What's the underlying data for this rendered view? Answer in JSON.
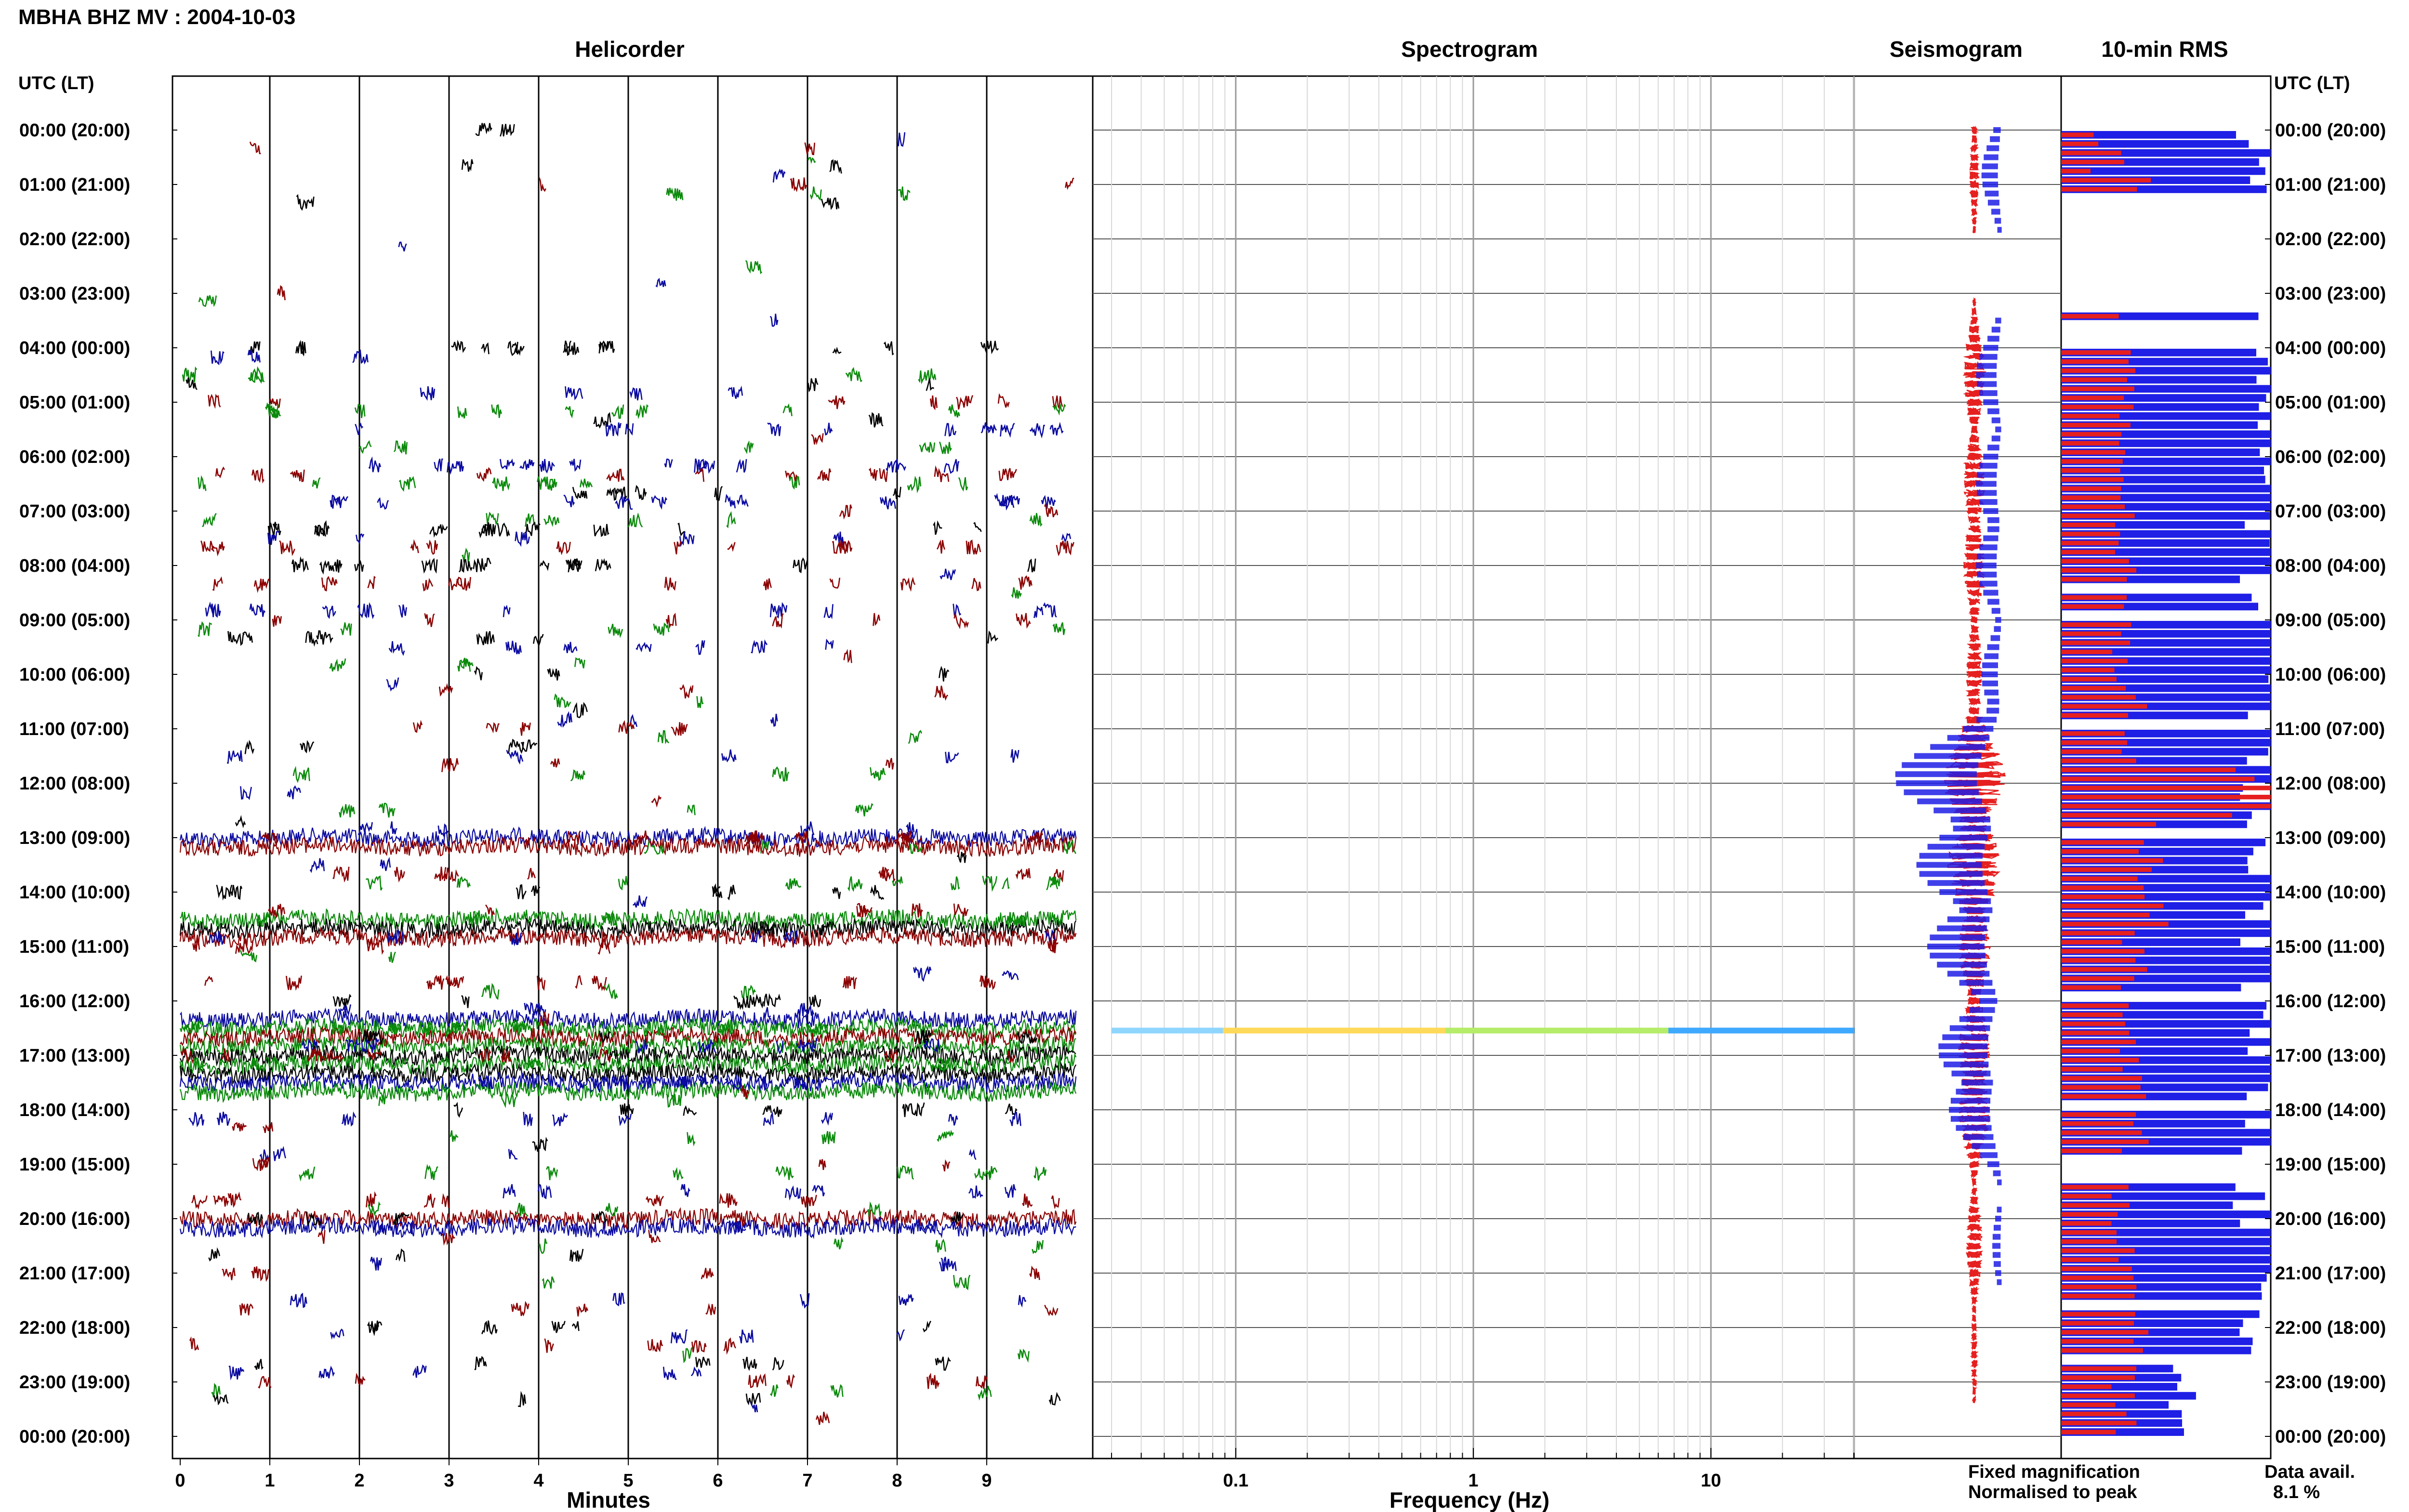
{
  "title": "MBHA BHZ MV : 2004-10-03",
  "panels": {
    "helicorder": "Helicorder",
    "spectrogram": "Spectrogram",
    "seismogram": "Seismogram",
    "rms": "10-min RMS"
  },
  "time_axis_label": "UTC (LT)",
  "time_labels": [
    "00:00 (20:00)",
    "01:00 (21:00)",
    "02:00 (22:00)",
    "03:00 (23:00)",
    "04:00 (00:00)",
    "05:00 (01:00)",
    "06:00 (02:00)",
    "07:00 (03:00)",
    "08:00 (04:00)",
    "09:00 (05:00)",
    "10:00 (06:00)",
    "11:00 (07:00)",
    "12:00 (08:00)",
    "13:00 (09:00)",
    "14:00 (10:00)",
    "15:00 (11:00)",
    "16:00 (12:00)",
    "17:00 (13:00)",
    "18:00 (14:00)",
    "19:00 (15:00)",
    "20:00 (16:00)",
    "21:00 (17:00)",
    "22:00 (18:00)",
    "23:00 (19:00)",
    "00:00 (20:00)"
  ],
  "minutes_axis": {
    "label": "Minutes",
    "ticks": [
      "0",
      "1",
      "2",
      "3",
      "4",
      "5",
      "6",
      "7",
      "8",
      "9"
    ]
  },
  "frequency_axis": {
    "label": "Frequency (Hz)",
    "ticks": [
      "0.1",
      "1",
      "10"
    ],
    "scale": "log",
    "range": [
      0.025,
      40
    ]
  },
  "legend": {
    "fixed": "Fixed magnification",
    "normalised": "Normalised to peak",
    "fixed_color": "#1f1fe6",
    "normalised_color": "#e61f1f"
  },
  "data_avail_label": "Data avail.",
  "data_avail_value": "8.1 %",
  "trace_colors": [
    "#000000",
    "#0a0aa0",
    "#8b0000",
    "#0a8a0a"
  ],
  "chart_data": {
    "type": "heatmap",
    "x": "minutes",
    "xlim": [
      0,
      10
    ],
    "ylim": [
      "00:00 UTC",
      "24:00 UTC"
    ],
    "rows_per_hour": 6,
    "helicorder_continuous_rows": [
      {
        "row": 78,
        "color": "#0a0aa0"
      },
      {
        "row": 79,
        "color": "#8b0000"
      },
      {
        "row": 87,
        "color": "#0a8a0a"
      },
      {
        "row": 88,
        "color": "#000000"
      },
      {
        "row": 89,
        "color": "#8b0000"
      },
      {
        "row": 98,
        "color": "#0a0aa0"
      },
      {
        "row": 99,
        "color": "#0a8a0a"
      },
      {
        "row": 100,
        "color": "#8b0000"
      },
      {
        "row": 101,
        "color": "#0a8a0a"
      },
      {
        "row": 102,
        "color": "#000000"
      },
      {
        "row": 103,
        "color": "#0a8a0a"
      },
      {
        "row": 104,
        "color": "#000000"
      },
      {
        "row": 105,
        "color": "#0a0aa0"
      },
      {
        "row": 106,
        "color": "#0a8a0a"
      },
      {
        "row": 120,
        "color": "#8b0000"
      },
      {
        "row": 121,
        "color": "#0a0aa0"
      }
    ],
    "spectrogram_events": [
      {
        "hour": 16.5,
        "fmin": 0.03,
        "fmax": 40
      }
    ],
    "seismogram_events": [
      {
        "hour": 0.2,
        "norm": 0.05,
        "fixed": 0.0
      },
      {
        "hour": 0.8,
        "norm": 0.08,
        "fixed": 0.2
      },
      {
        "hour": 4.5,
        "norm": 0.2,
        "fixed": 0.25
      },
      {
        "hour": 6.5,
        "norm": 0.2,
        "fixed": 0.25
      },
      {
        "hour": 8.0,
        "norm": 0.2,
        "fixed": 0.25
      },
      {
        "hour": 10.0,
        "norm": 0.15,
        "fixed": 0.2
      },
      {
        "hour": 11.9,
        "norm": 0.6,
        "fixed": 1.0
      },
      {
        "hour": 13.5,
        "norm": 0.5,
        "fixed": 0.8
      },
      {
        "hour": 15.0,
        "norm": 0.3,
        "fixed": 0.7
      },
      {
        "hour": 16.9,
        "norm": 0.3,
        "fixed": 0.6
      },
      {
        "hour": 18.0,
        "norm": 0.3,
        "fixed": 0.5
      },
      {
        "hour": 20.5,
        "norm": 0.15,
        "fixed": 0.1
      },
      {
        "hour": 22.5,
        "norm": 0.05,
        "fixed": 0.0
      }
    ],
    "rms_bars": [
      {
        "hour": 0.17,
        "blue": 0.8,
        "red": 0.17
      },
      {
        "hour": 0.33,
        "blue": 1.0,
        "red": 0.33
      },
      {
        "hour": 0.67,
        "blue": 1.0,
        "red": 0.13
      },
      {
        "hour": 0.83,
        "blue": 1.0,
        "red": 0.38
      },
      {
        "hour": 1.0,
        "blue": 1.0,
        "red": 0.4
      },
      {
        "hour": 1.17,
        "blue": 0.0,
        "red": 0.0
      },
      {
        "hour": 3.33,
        "blue": 0.93,
        "red": 0.26
      },
      {
        "hour": 4.0,
        "blue": 1.0,
        "red": 0.3
      },
      {
        "hour": 9.0,
        "blue": 1.0,
        "red": 0.3
      },
      {
        "hour": 11.2,
        "blue": 1.0,
        "red": 0.35
      },
      {
        "hour": 12.0,
        "blue": 1.0,
        "red": 1.0
      },
      {
        "hour": 13.0,
        "blue": 1.0,
        "red": 0.45
      },
      {
        "hour": 16.0,
        "blue": 1.0,
        "red": 0.35
      },
      {
        "hour": 18.0,
        "blue": 1.0,
        "red": 0.35
      },
      {
        "hour": 19.8,
        "blue": 0.95,
        "red": 0.3
      },
      {
        "hour": 22.0,
        "blue": 1.0,
        "red": 0.35
      },
      {
        "hour": 23.0,
        "blue": 0.6,
        "red": 0.3
      }
    ]
  }
}
